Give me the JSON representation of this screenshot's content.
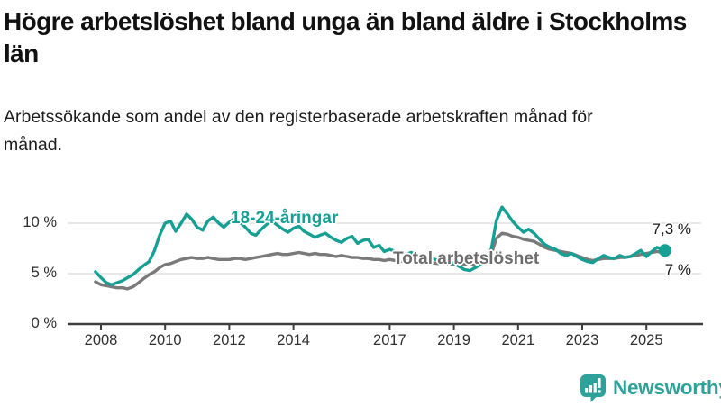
{
  "header": {
    "title": "Högre arbetslöshet bland unga än bland äldre i Stockholms län",
    "subtitle": "Arbetssökande som andel av den registerbaserade arbetskraften månad för månad."
  },
  "branding": {
    "wordmark": "Newsworthy",
    "icon": "newsworthy-chart-bubble-icon",
    "color": "#2ea29a"
  },
  "chart_data": {
    "type": "line",
    "unit": "%",
    "grid": "horizontal",
    "legend_position": "inline-labels-on-lines",
    "colors": {
      "axis": "#3d3d3d",
      "gridline": "#e0e0e0",
      "tick_text": "#303030",
      "end_label_text": "#1a1a1a"
    },
    "x_axis": {
      "tick_values": [
        2008,
        2010,
        2012,
        2014,
        2017,
        2019,
        2021,
        2023,
        2025
      ],
      "tick_labels": [
        "2008",
        "2010",
        "2012",
        "2014",
        "2017",
        "2019",
        "2021",
        "2023",
        "2025"
      ],
      "range": [
        2007.8,
        2026.1
      ]
    },
    "y_axis": {
      "tick_values": [
        0,
        5,
        10
      ],
      "tick_labels": [
        "0 %",
        "5 %",
        "10 %"
      ],
      "range": [
        0,
        12.7
      ]
    },
    "series": [
      {
        "name": "18-24-åringar",
        "color": "#16a094",
        "label_color": "#16a094",
        "end_label": "7,3 %",
        "end_value": 7.3,
        "end_marker": true,
        "points": [
          [
            2007.83,
            5.2
          ],
          [
            2008,
            4.6
          ],
          [
            2008.17,
            4.1
          ],
          [
            2008.33,
            3.9
          ],
          [
            2008.5,
            4.1
          ],
          [
            2008.67,
            4.3
          ],
          [
            2008.83,
            4.6
          ],
          [
            2009,
            4.9
          ],
          [
            2009.17,
            5.4
          ],
          [
            2009.33,
            5.8
          ],
          [
            2009.5,
            6.2
          ],
          [
            2009.67,
            7.3
          ],
          [
            2009.83,
            8.8
          ],
          [
            2010,
            10
          ],
          [
            2010.17,
            10.2
          ],
          [
            2010.33,
            9.2
          ],
          [
            2010.5,
            10
          ],
          [
            2010.67,
            10.9
          ],
          [
            2010.83,
            10.4
          ],
          [
            2011,
            9.6
          ],
          [
            2011.17,
            9.3
          ],
          [
            2011.33,
            10.2
          ],
          [
            2011.5,
            10.6
          ],
          [
            2011.67,
            10
          ],
          [
            2011.83,
            9.6
          ],
          [
            2012,
            10.1
          ],
          [
            2012.17,
            10.5
          ],
          [
            2012.33,
            10.1
          ],
          [
            2012.5,
            9.6
          ],
          [
            2012.67,
            9
          ],
          [
            2012.83,
            8.8
          ],
          [
            2013,
            9.4
          ],
          [
            2013.17,
            9.9
          ],
          [
            2013.33,
            10.2
          ],
          [
            2013.5,
            9.8
          ],
          [
            2013.67,
            9.4
          ],
          [
            2013.83,
            9.1
          ],
          [
            2014,
            9.5
          ],
          [
            2014.17,
            9.7
          ],
          [
            2014.33,
            9.2
          ],
          [
            2014.5,
            8.9
          ],
          [
            2014.67,
            8.6
          ],
          [
            2014.83,
            8.8
          ],
          [
            2015,
            9
          ],
          [
            2015.17,
            8.6
          ],
          [
            2015.33,
            8.3
          ],
          [
            2015.5,
            8.1
          ],
          [
            2015.67,
            8.5
          ],
          [
            2015.83,
            8.7
          ],
          [
            2016,
            8
          ],
          [
            2016.17,
            8.3
          ],
          [
            2016.33,
            8.4
          ],
          [
            2016.5,
            7.6
          ],
          [
            2016.67,
            7.8
          ],
          [
            2016.83,
            7.2
          ],
          [
            2017,
            7.4
          ],
          [
            2017.17,
            7.2
          ],
          [
            2017.33,
            7
          ],
          [
            2017.5,
            6.9
          ],
          [
            2017.67,
            7.1
          ],
          [
            2017.83,
            6.8
          ],
          [
            2018,
            6.6
          ],
          [
            2018.17,
            6.7
          ],
          [
            2018.33,
            6.5
          ],
          [
            2018.5,
            6.3
          ],
          [
            2018.67,
            6.4
          ],
          [
            2018.83,
            6.2
          ],
          [
            2019,
            6
          ],
          [
            2019.17,
            5.7
          ],
          [
            2019.33,
            5.4
          ],
          [
            2019.5,
            5.3
          ],
          [
            2019.67,
            5.6
          ],
          [
            2019.83,
            5.9
          ],
          [
            2020,
            6.1
          ],
          [
            2020.17,
            7.5
          ],
          [
            2020.33,
            10.3
          ],
          [
            2020.5,
            11.6
          ],
          [
            2020.67,
            10.9
          ],
          [
            2020.83,
            10.2
          ],
          [
            2021,
            9.6
          ],
          [
            2021.17,
            9.1
          ],
          [
            2021.33,
            9.4
          ],
          [
            2021.5,
            9
          ],
          [
            2021.67,
            8.4
          ],
          [
            2021.83,
            7.9
          ],
          [
            2022,
            7.6
          ],
          [
            2022.17,
            7.4
          ],
          [
            2022.33,
            7
          ],
          [
            2022.5,
            6.8
          ],
          [
            2022.67,
            7
          ],
          [
            2022.83,
            6.7
          ],
          [
            2023,
            6.4
          ],
          [
            2023.17,
            6.2
          ],
          [
            2023.33,
            6.1
          ],
          [
            2023.5,
            6.5
          ],
          [
            2023.67,
            6.8
          ],
          [
            2023.83,
            6.6
          ],
          [
            2024,
            6.5
          ],
          [
            2024.17,
            6.8
          ],
          [
            2024.33,
            6.6
          ],
          [
            2024.5,
            6.7
          ],
          [
            2024.67,
            7
          ],
          [
            2024.83,
            7.3
          ],
          [
            2025,
            6.7
          ],
          [
            2025.17,
            7.2
          ],
          [
            2025.33,
            7.6
          ],
          [
            2025.5,
            7.4
          ],
          [
            2025.58,
            7.3
          ]
        ]
      },
      {
        "name": "Total arbetslöshet",
        "color": "#7a7a7a",
        "label_color": "#6d6d6d",
        "end_label": "7 %",
        "end_value": 7.0,
        "end_marker": false,
        "points": [
          [
            2007.83,
            4.2
          ],
          [
            2008,
            3.9
          ],
          [
            2008.17,
            3.8
          ],
          [
            2008.33,
            3.7
          ],
          [
            2008.5,
            3.6
          ],
          [
            2008.67,
            3.6
          ],
          [
            2008.83,
            3.5
          ],
          [
            2009,
            3.7
          ],
          [
            2009.17,
            4.1
          ],
          [
            2009.33,
            4.5
          ],
          [
            2009.5,
            4.9
          ],
          [
            2009.67,
            5.2
          ],
          [
            2009.83,
            5.6
          ],
          [
            2010,
            5.9
          ],
          [
            2010.17,
            6
          ],
          [
            2010.33,
            6.2
          ],
          [
            2010.5,
            6.4
          ],
          [
            2010.67,
            6.5
          ],
          [
            2010.83,
            6.6
          ],
          [
            2011,
            6.5
          ],
          [
            2011.17,
            6.5
          ],
          [
            2011.33,
            6.6
          ],
          [
            2011.5,
            6.5
          ],
          [
            2011.67,
            6.4
          ],
          [
            2011.83,
            6.4
          ],
          [
            2012,
            6.4
          ],
          [
            2012.17,
            6.5
          ],
          [
            2012.33,
            6.5
          ],
          [
            2012.5,
            6.4
          ],
          [
            2012.67,
            6.5
          ],
          [
            2012.83,
            6.6
          ],
          [
            2013,
            6.7
          ],
          [
            2013.17,
            6.8
          ],
          [
            2013.33,
            6.9
          ],
          [
            2013.5,
            7
          ],
          [
            2013.67,
            6.9
          ],
          [
            2013.83,
            6.9
          ],
          [
            2014,
            7
          ],
          [
            2014.17,
            7.1
          ],
          [
            2014.33,
            7
          ],
          [
            2014.5,
            6.9
          ],
          [
            2014.67,
            7
          ],
          [
            2014.83,
            6.9
          ],
          [
            2015,
            6.9
          ],
          [
            2015.17,
            6.8
          ],
          [
            2015.33,
            6.7
          ],
          [
            2015.5,
            6.8
          ],
          [
            2015.67,
            6.7
          ],
          [
            2015.83,
            6.6
          ],
          [
            2016,
            6.6
          ],
          [
            2016.17,
            6.5
          ],
          [
            2016.33,
            6.5
          ],
          [
            2016.5,
            6.4
          ],
          [
            2016.67,
            6.4
          ],
          [
            2016.83,
            6.3
          ],
          [
            2017,
            6.4
          ],
          [
            2017.17,
            6.3
          ],
          [
            2017.33,
            6.2
          ],
          [
            2017.5,
            6.3
          ],
          [
            2017.67,
            6.2
          ],
          [
            2017.83,
            6.2
          ],
          [
            2018,
            6.1
          ],
          [
            2018.17,
            6.2
          ],
          [
            2018.33,
            6.1
          ],
          [
            2018.5,
            6
          ],
          [
            2018.67,
            6.1
          ],
          [
            2018.83,
            6
          ],
          [
            2019,
            5.9
          ],
          [
            2019.17,
            6
          ],
          [
            2019.33,
            5.9
          ],
          [
            2019.5,
            5.9
          ],
          [
            2019.67,
            5.8
          ],
          [
            2019.83,
            5.9
          ],
          [
            2020,
            6
          ],
          [
            2020.17,
            7
          ],
          [
            2020.33,
            8.5
          ],
          [
            2020.5,
            9
          ],
          [
            2020.67,
            8.9
          ],
          [
            2020.83,
            8.7
          ],
          [
            2021,
            8.6
          ],
          [
            2021.17,
            8.4
          ],
          [
            2021.33,
            8.3
          ],
          [
            2021.5,
            8.2
          ],
          [
            2021.67,
            7.9
          ],
          [
            2021.83,
            7.6
          ],
          [
            2022,
            7.4
          ],
          [
            2022.17,
            7.3
          ],
          [
            2022.33,
            7.2
          ],
          [
            2022.5,
            7.1
          ],
          [
            2022.67,
            7
          ],
          [
            2022.83,
            6.8
          ],
          [
            2023,
            6.6
          ],
          [
            2023.17,
            6.4
          ],
          [
            2023.33,
            6.3
          ],
          [
            2023.5,
            6.4
          ],
          [
            2023.67,
            6.5
          ],
          [
            2023.83,
            6.5
          ],
          [
            2024,
            6.5
          ],
          [
            2024.17,
            6.6
          ],
          [
            2024.33,
            6.6
          ],
          [
            2024.5,
            6.7
          ],
          [
            2024.67,
            6.8
          ],
          [
            2024.83,
            6.9
          ],
          [
            2025,
            7
          ],
          [
            2025.17,
            7.1
          ],
          [
            2025.33,
            7.2
          ],
          [
            2025.5,
            7.1
          ],
          [
            2025.58,
            7
          ]
        ]
      }
    ]
  }
}
